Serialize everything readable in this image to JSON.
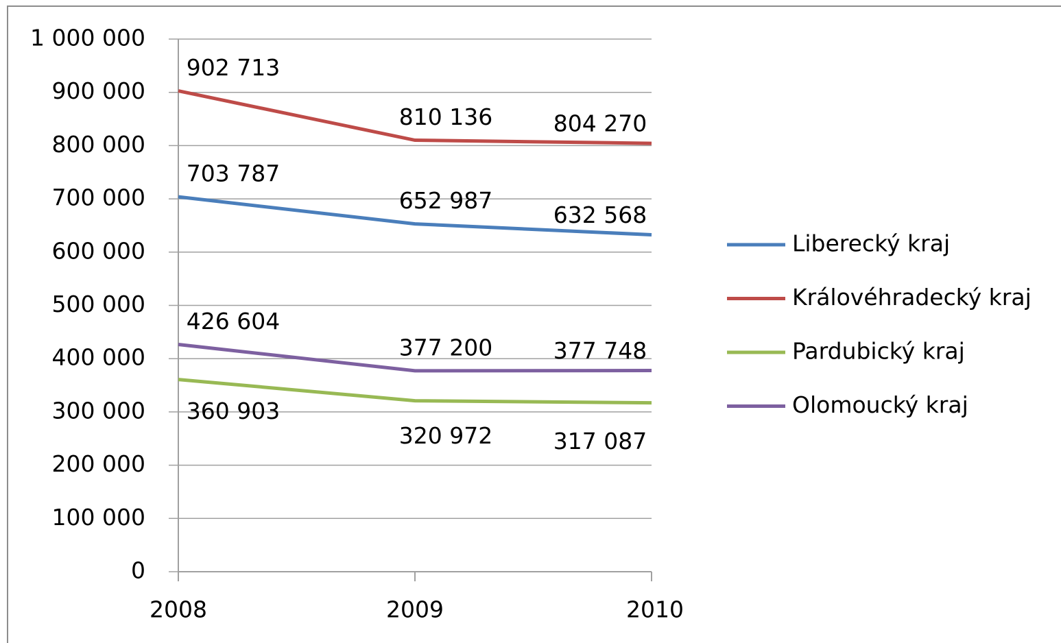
{
  "chart_data": {
    "type": "line",
    "categories": [
      "2008",
      "2009",
      "2010"
    ],
    "ylim": [
      0,
      1000000
    ],
    "yticks": [
      0,
      {
        "value": 100000,
        "label": "100 000"
      },
      {
        "value": 200000,
        "label": "200 000"
      },
      {
        "value": 300000,
        "label": "300 000"
      },
      {
        "value": 400000,
        "label": "400 000"
      },
      {
        "value": 500000,
        "label": "500 000"
      },
      {
        "value": 600000,
        "label": "600 000"
      },
      {
        "value": 700000,
        "label": "700 000"
      },
      {
        "value": 800000,
        "label": "800 000"
      },
      {
        "value": 900000,
        "label": "900 000"
      },
      {
        "value": 1000000,
        "label": "1 000 000"
      }
    ],
    "grid": true,
    "legend": "right",
    "series": [
      {
        "name": "Liberecký kraj",
        "color": "#4a7ebb",
        "values": [
          703787,
          652987,
          632568
        ],
        "value_labels": [
          "703 787",
          "652 987",
          "632 568"
        ]
      },
      {
        "name": "Královéhradecký kraj",
        "color": "#be4b48",
        "values": [
          902713,
          810136,
          804270
        ],
        "value_labels": [
          "902 713",
          "810 136",
          "804 270"
        ]
      },
      {
        "name": "Pardubický kraj",
        "color": "#98b954",
        "values": [
          360903,
          320972,
          317087
        ],
        "value_labels": [
          "360 903",
          "320 972",
          "317 087"
        ]
      },
      {
        "name": "Olomoucký kraj",
        "color": "#7d60a0",
        "values": [
          426604,
          377200,
          377748
        ],
        "value_labels": [
          "426 604",
          "377 200",
          "377 748"
        ]
      }
    ]
  }
}
